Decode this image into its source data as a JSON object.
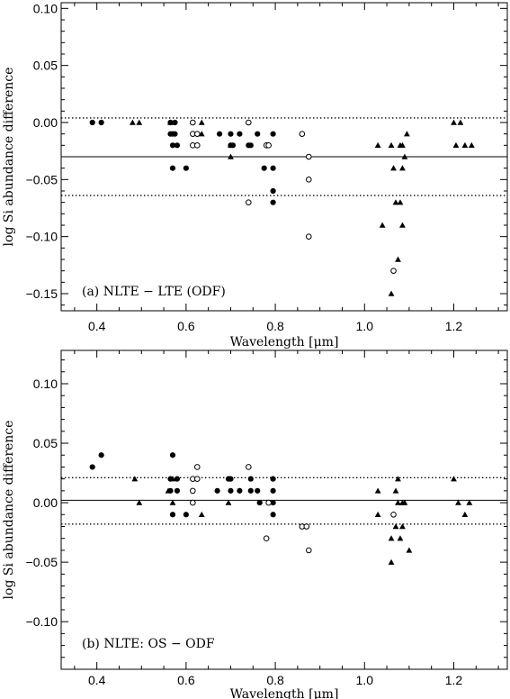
{
  "chart_data": [
    {
      "type": "scatter",
      "panel_label": "(a)  NLTE − LTE (ODF)",
      "xlabel": "Wavelength [μm]",
      "ylabel": "log Si abundance difference",
      "xlim": [
        0.32,
        1.32
      ],
      "ylim": [
        -0.165,
        0.105
      ],
      "xticks": [
        0.4,
        0.6,
        0.8,
        1.0,
        1.2
      ],
      "xtick_labels": [
        "0.4",
        "0.6",
        "0.8",
        "1.0",
        "1.2"
      ],
      "yticks": [
        0.1,
        0.05,
        0.0,
        -0.05,
        -0.1,
        -0.15
      ],
      "ytick_labels": [
        "0.10",
        "0.05",
        "0.00",
        "−0.05",
        "−0.10",
        "−0.15"
      ],
      "mean_line": -0.03,
      "sigma_lines": [
        0.004,
        -0.064
      ],
      "series": [
        {
          "marker": "filled-circle",
          "points": [
            [
              0.39,
              0.0
            ],
            [
              0.41,
              0.0
            ],
            [
              0.565,
              0.0
            ],
            [
              0.575,
              0.0
            ],
            [
              0.565,
              -0.01
            ],
            [
              0.57,
              -0.01
            ],
            [
              0.575,
              -0.01
            ],
            [
              0.57,
              -0.02
            ],
            [
              0.58,
              -0.02
            ],
            [
              0.57,
              -0.04
            ],
            [
              0.6,
              -0.04
            ],
            [
              0.675,
              -0.01
            ],
            [
              0.7,
              -0.01
            ],
            [
              0.72,
              -0.01
            ],
            [
              0.7,
              -0.02
            ],
            [
              0.705,
              -0.02
            ],
            [
              0.745,
              -0.02
            ],
            [
              0.76,
              -0.01
            ],
            [
              0.795,
              -0.01
            ],
            [
              0.74,
              -0.02
            ],
            [
              0.775,
              -0.04
            ],
            [
              0.795,
              -0.04
            ],
            [
              0.795,
              -0.06
            ],
            [
              0.795,
              -0.07
            ]
          ]
        },
        {
          "marker": "open-circle",
          "points": [
            [
              0.615,
              0.0
            ],
            [
              0.615,
              -0.01
            ],
            [
              0.625,
              -0.01
            ],
            [
              0.615,
              -0.02
            ],
            [
              0.625,
              -0.02
            ],
            [
              0.74,
              0.0
            ],
            [
              0.78,
              -0.02
            ],
            [
              0.785,
              -0.02
            ],
            [
              0.74,
              -0.07
            ],
            [
              0.86,
              -0.01
            ],
            [
              0.875,
              -0.03
            ],
            [
              0.875,
              -0.05
            ],
            [
              0.875,
              -0.1
            ],
            [
              1.065,
              -0.13
            ]
          ]
        },
        {
          "marker": "filled-triangle",
          "points": [
            [
              0.48,
              0.0
            ],
            [
              0.495,
              0.0
            ],
            [
              0.565,
              0.0
            ],
            [
              0.635,
              0.0
            ],
            [
              0.57,
              -0.01
            ],
            [
              0.635,
              -0.01
            ],
            [
              0.7,
              -0.02
            ],
            [
              0.7,
              -0.03
            ],
            [
              1.03,
              -0.02
            ],
            [
              1.06,
              -0.02
            ],
            [
              1.08,
              -0.02
            ],
            [
              1.085,
              -0.02
            ],
            [
              1.095,
              -0.01
            ],
            [
              1.065,
              -0.04
            ],
            [
              1.085,
              -0.04
            ],
            [
              1.09,
              -0.03
            ],
            [
              1.07,
              -0.07
            ],
            [
              1.08,
              -0.07
            ],
            [
              1.04,
              -0.09
            ],
            [
              1.085,
              -0.09
            ],
            [
              1.075,
              -0.12
            ],
            [
              1.06,
              -0.15
            ],
            [
              1.2,
              0.0
            ],
            [
              1.215,
              0.0
            ],
            [
              1.205,
              -0.02
            ],
            [
              1.225,
              -0.02
            ],
            [
              1.24,
              -0.02
            ]
          ]
        }
      ]
    },
    {
      "type": "scatter",
      "panel_label": "(b)  NLTE: OS − ODF",
      "xlabel": "Wavelength [μm]",
      "ylabel": "log Si abundance difference",
      "xlim": [
        0.32,
        1.32
      ],
      "ylim": [
        -0.14,
        0.128
      ],
      "xticks": [
        0.4,
        0.6,
        0.8,
        1.0,
        1.2
      ],
      "xtick_labels": [
        "0.4",
        "0.6",
        "0.8",
        "1.0",
        "1.2"
      ],
      "yticks": [
        0.1,
        0.05,
        0.0,
        -0.05,
        -0.1
      ],
      "ytick_labels": [
        "0.10",
        "0.05",
        "0.00",
        "−0.05",
        "−0.10"
      ],
      "mean_line": 0.002,
      "sigma_lines": [
        0.021,
        -0.018
      ],
      "series": [
        {
          "marker": "filled-circle",
          "points": [
            [
              0.39,
              0.03
            ],
            [
              0.41,
              0.04
            ],
            [
              0.57,
              0.04
            ],
            [
              0.565,
              0.02
            ],
            [
              0.58,
              0.02
            ],
            [
              0.565,
              0.01
            ],
            [
              0.58,
              0.01
            ],
            [
              0.57,
              -0.01
            ],
            [
              0.6,
              -0.01
            ],
            [
              0.67,
              0.01
            ],
            [
              0.695,
              0.02
            ],
            [
              0.7,
              0.02
            ],
            [
              0.7,
              0.01
            ],
            [
              0.72,
              0.01
            ],
            [
              0.745,
              0.01
            ],
            [
              0.745,
              0.02
            ],
            [
              0.76,
              0.01
            ],
            [
              0.765,
              0.0
            ],
            [
              0.795,
              0.02
            ],
            [
              0.795,
              0.01
            ],
            [
              0.795,
              0.0
            ],
            [
              0.795,
              -0.01
            ]
          ]
        },
        {
          "marker": "open-circle",
          "points": [
            [
              0.615,
              0.02
            ],
            [
              0.625,
              0.02
            ],
            [
              0.625,
              0.03
            ],
            [
              0.615,
              0.01
            ],
            [
              0.615,
              0.0
            ],
            [
              0.74,
              0.03
            ],
            [
              0.785,
              0.0
            ],
            [
              0.78,
              -0.03
            ],
            [
              0.86,
              -0.02
            ],
            [
              0.87,
              -0.02
            ],
            [
              0.875,
              -0.04
            ],
            [
              1.065,
              -0.01
            ]
          ]
        },
        {
          "marker": "filled-triangle",
          "points": [
            [
              0.485,
              0.02
            ],
            [
              0.495,
              0.0
            ],
            [
              0.56,
              0.01
            ],
            [
              0.57,
              0.02
            ],
            [
              0.57,
              0.0
            ],
            [
              0.635,
              -0.01
            ],
            [
              0.695,
              0.0
            ],
            [
              1.03,
              0.01
            ],
            [
              1.03,
              -0.01
            ],
            [
              1.075,
              0.02
            ],
            [
              1.075,
              0.0
            ],
            [
              1.085,
              0.0
            ],
            [
              1.09,
              0.0
            ],
            [
              1.07,
              0.01
            ],
            [
              1.07,
              -0.02
            ],
            [
              1.085,
              -0.02
            ],
            [
              1.06,
              -0.03
            ],
            [
              1.08,
              -0.03
            ],
            [
              1.1,
              -0.04
            ],
            [
              1.06,
              -0.05
            ],
            [
              1.2,
              0.02
            ],
            [
              1.21,
              0.0
            ],
            [
              1.225,
              -0.01
            ],
            [
              1.235,
              0.0
            ]
          ]
        }
      ]
    }
  ]
}
